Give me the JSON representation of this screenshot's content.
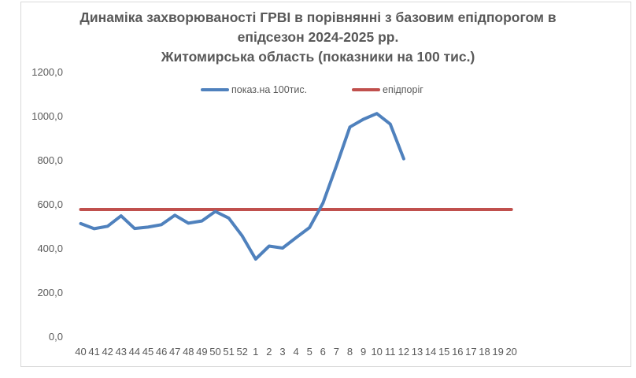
{
  "chart_data": {
    "type": "line",
    "title_lines": [
      "Динаміка захворюваності ГРВІ в порівнянні з базовим епідпорогом в",
      "епідсезон 2024-2025 рр.",
      "Житомирська область (показники на 100 тис.)"
    ],
    "categories": [
      "40",
      "41",
      "42",
      "43",
      "44",
      "45",
      "46",
      "47",
      "48",
      "49",
      "50",
      "51",
      "52",
      "1",
      "2",
      "3",
      "4",
      "5",
      "6",
      "7",
      "8",
      "9",
      "10",
      "11",
      "12",
      "13",
      "14",
      "15",
      "16",
      "17",
      "18",
      "19",
      "20"
    ],
    "ylim": [
      0,
      1200
    ],
    "yticks": [
      "0,0",
      "200,0",
      "400,0",
      "600,0",
      "800,0",
      "1000,0",
      "1200,0"
    ],
    "grid": false,
    "legend_position": "top",
    "series": [
      {
        "name": "показ.на 100тис.",
        "color": "#4f81bd",
        "values": [
          511,
          488,
          499,
          546,
          489,
          495,
          506,
          549,
          513,
          523,
          566,
          536,
          455,
          350,
          409,
          400,
          447,
          493,
          604,
          773,
          949,
          984,
          1010,
          962,
          805,
          null,
          null,
          null,
          null,
          null,
          null,
          null,
          null
        ]
      },
      {
        "name": "епідпоріг",
        "color": "#c0504d",
        "values": [
          575,
          575,
          575,
          575,
          575,
          575,
          575,
          575,
          575,
          575,
          575,
          575,
          575,
          575,
          575,
          575,
          575,
          575,
          575,
          575,
          575,
          575,
          575,
          575,
          575,
          575,
          575,
          575,
          575,
          575,
          575,
          575,
          575
        ]
      }
    ]
  }
}
